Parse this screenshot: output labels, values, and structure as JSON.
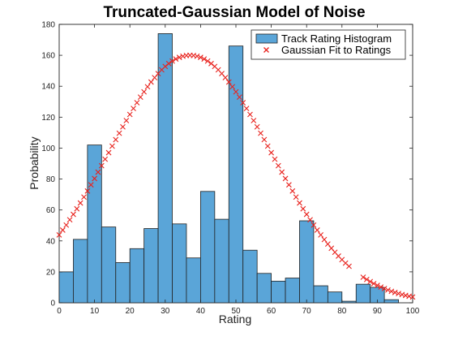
{
  "chart_data": {
    "type": "bar",
    "title": "Truncated-Gaussian Model of Noise",
    "xlabel": "Rating",
    "ylabel": "Probability",
    "xlim": [
      0,
      100
    ],
    "ylim": [
      0,
      180
    ],
    "xticks": [
      0,
      10,
      20,
      30,
      40,
      50,
      60,
      70,
      80,
      90,
      100
    ],
    "yticks": [
      0,
      20,
      40,
      60,
      80,
      100,
      120,
      140,
      160,
      180
    ],
    "grid": false,
    "legend_position": "top-right",
    "histogram": {
      "name": "Track Rating Histogram",
      "color": "#5aa5d8",
      "edge_color": "#222222",
      "bin_width": 4,
      "bin_edges_start": 0,
      "values": [
        20,
        41,
        102,
        49,
        26,
        35,
        48,
        174,
        51,
        29,
        72,
        54,
        166,
        34,
        19,
        14,
        16,
        53,
        11,
        7,
        1,
        12,
        10,
        2
      ]
    },
    "gaussian": {
      "name": "Gaussian Fit to Ratings",
      "color": "#e8231e",
      "marker": "x",
      "segments": [
        {
          "x_start": 0,
          "x_end": 82,
          "step": 1
        },
        {
          "x_start": 86,
          "x_end": 100,
          "step": 1
        }
      ],
      "mean": 37,
      "std": 23,
      "peak": 160
    }
  }
}
